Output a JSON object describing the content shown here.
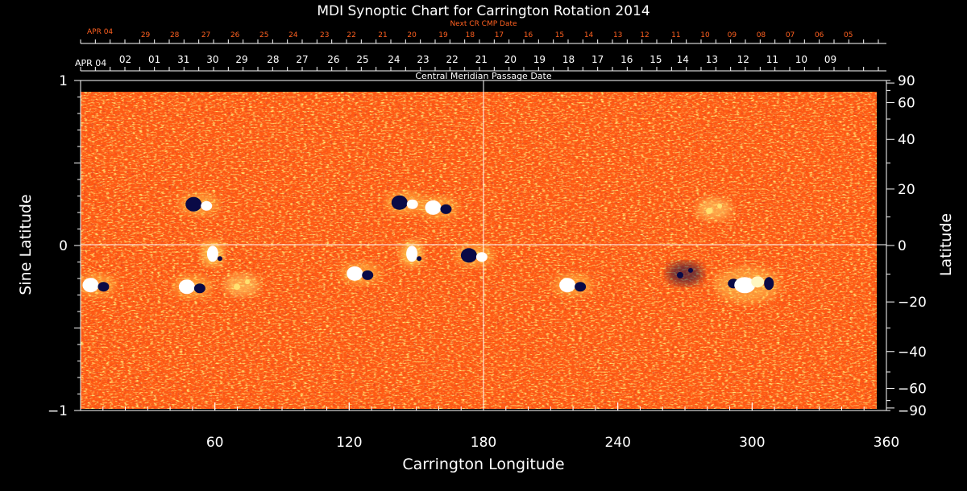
{
  "chart_data": {
    "type": "heatmap",
    "title": "MDI Synoptic Chart for Carrington Rotation 2014",
    "xlabel": "Carrington Longitude",
    "ylabel_left": "Sine Latitude",
    "ylabel_right": "Latitude",
    "xlim": [
      0,
      360
    ],
    "ylim": [
      -1,
      1
    ],
    "x_ticks": [
      60,
      120,
      180,
      240,
      300,
      360
    ],
    "y_ticks_left": [
      {
        "value": 1,
        "label": "1"
      },
      {
        "value": 0,
        "label": "0"
      },
      {
        "value": -1,
        "label": "−1"
      }
    ],
    "y_ticks_right": [
      {
        "value": 90,
        "label": "90"
      },
      {
        "value": 60,
        "label": "60"
      },
      {
        "value": 40,
        "label": "40"
      },
      {
        "value": 20,
        "label": "20"
      },
      {
        "value": 0,
        "label": "0"
      },
      {
        "value": -20,
        "label": "−20"
      },
      {
        "value": -40,
        "label": "−40"
      },
      {
        "value": -60,
        "label": "−60"
      },
      {
        "value": -90,
        "label": "−90"
      }
    ],
    "grid": "crosshair at longitude 180 and latitude 0",
    "colors": {
      "background": "#000000",
      "field": "#ff5a14",
      "positive": "#ffffff",
      "negative": "#0a0a46",
      "axis": "#ffffff",
      "next_cmp": "#ff6020",
      "crosshair": "#ffffff"
    },
    "cmp_axis": {
      "label": "Central Meridian Passage Date",
      "start_label": "APR 04",
      "ticks": [
        {
          "lon": 20,
          "label": "02"
        },
        {
          "lon": 33,
          "label": "01"
        },
        {
          "lon": 46,
          "label": "31"
        },
        {
          "lon": 59,
          "label": "30"
        },
        {
          "lon": 72,
          "label": "29"
        },
        {
          "lon": 86,
          "label": "28"
        },
        {
          "lon": 99,
          "label": "27"
        },
        {
          "lon": 113,
          "label": "26"
        },
        {
          "lon": 126,
          "label": "25"
        },
        {
          "lon": 140,
          "label": "24"
        },
        {
          "lon": 153,
          "label": "23"
        },
        {
          "lon": 166,
          "label": "22"
        },
        {
          "lon": 179,
          "label": "21"
        },
        {
          "lon": 192,
          "label": "20"
        },
        {
          "lon": 205,
          "label": "19"
        },
        {
          "lon": 218,
          "label": "18"
        },
        {
          "lon": 231,
          "label": "17"
        },
        {
          "lon": 244,
          "label": "16"
        },
        {
          "lon": 257,
          "label": "15"
        },
        {
          "lon": 269,
          "label": "14"
        },
        {
          "lon": 282,
          "label": "13"
        },
        {
          "lon": 296,
          "label": "12"
        },
        {
          "lon": 309,
          "label": "11"
        },
        {
          "lon": 322,
          "label": "10"
        },
        {
          "lon": 335,
          "label": "09"
        }
      ]
    },
    "next_cmp_axis": {
      "label": "Next CR CMP Date",
      "start_label": "APR 04",
      "ticks": [
        {
          "lon": 29,
          "label": "29"
        },
        {
          "lon": 42,
          "label": "28"
        },
        {
          "lon": 56,
          "label": "27"
        },
        {
          "lon": 69,
          "label": "26"
        },
        {
          "lon": 82,
          "label": "25"
        },
        {
          "lon": 95,
          "label": "24"
        },
        {
          "lon": 109,
          "label": "23"
        },
        {
          "lon": 121,
          "label": "22"
        },
        {
          "lon": 135,
          "label": "21"
        },
        {
          "lon": 148,
          "label": "20"
        },
        {
          "lon": 162,
          "label": "19"
        },
        {
          "lon": 174,
          "label": "18"
        },
        {
          "lon": 187,
          "label": "17"
        },
        {
          "lon": 200,
          "label": "16"
        },
        {
          "lon": 214,
          "label": "15"
        },
        {
          "lon": 227,
          "label": "14"
        },
        {
          "lon": 240,
          "label": "13"
        },
        {
          "lon": 252,
          "label": "12"
        },
        {
          "lon": 266,
          "label": "11"
        },
        {
          "lon": 279,
          "label": "10"
        },
        {
          "lon": 291,
          "label": "09"
        },
        {
          "lon": 304,
          "label": "08"
        },
        {
          "lon": 317,
          "label": "07"
        },
        {
          "lon": 330,
          "label": "06"
        },
        {
          "lon": 343,
          "label": "05"
        }
      ]
    },
    "active_regions": [
      {
        "lon": 53,
        "sinlat": 0.25,
        "polarity": "bipolar-negative-lead"
      },
      {
        "lon": 59,
        "sinlat": -0.05,
        "polarity": "positive"
      },
      {
        "lon": 7,
        "sinlat": -0.24,
        "polarity": "bipolar-positive-lead"
      },
      {
        "lon": 50,
        "sinlat": -0.25,
        "polarity": "bipolar"
      },
      {
        "lon": 72,
        "sinlat": -0.24,
        "polarity": "positive-weak"
      },
      {
        "lon": 145,
        "sinlat": 0.26,
        "polarity": "bipolar-negative-lead"
      },
      {
        "lon": 160,
        "sinlat": 0.23,
        "polarity": "bipolar"
      },
      {
        "lon": 148,
        "sinlat": -0.05,
        "polarity": "positive"
      },
      {
        "lon": 125,
        "sinlat": -0.17,
        "polarity": "bipolar"
      },
      {
        "lon": 176,
        "sinlat": -0.06,
        "polarity": "bipolar-negative-lead"
      },
      {
        "lon": 220,
        "sinlat": -0.24,
        "polarity": "bipolar"
      },
      {
        "lon": 296,
        "sinlat": -0.24,
        "polarity": "bipolar-large"
      },
      {
        "lon": 270,
        "sinlat": -0.17,
        "polarity": "negative-weak"
      },
      {
        "lon": 283,
        "sinlat": 0.22,
        "polarity": "positive-weak"
      }
    ]
  }
}
